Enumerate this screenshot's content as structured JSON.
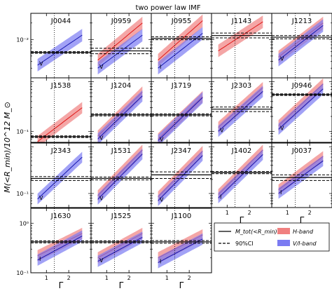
{
  "figure": {
    "title": "two power law IMF",
    "ylabel": "M(<R_min)/10^12 M_⊙",
    "xlabel": "Γ"
  },
  "legend": {
    "solid_label": "M_tot(<R_min)",
    "dashed_label": "90%CI",
    "red_label": "H-band",
    "blue_label": "V/I-band"
  },
  "colors": {
    "red_band": "#f08080",
    "blue_band": "#7b7bf2",
    "red_line": "#e01818",
    "blue_line": "#1818b0",
    "black": "#000000"
  },
  "chart_data": {
    "type": "line",
    "title": "two power law IMF",
    "xlabel": "Γ",
    "ylabel": "M(<R_min)/10^12 M_⊙",
    "xlim": [
      0.3,
      3.0
    ],
    "x_ticks": [
      1,
      2
    ],
    "x_tick_labels": [
      "1",
      "2"
    ],
    "yscale": "log",
    "gamma_reference": 1.35,
    "row_ylim": [
      [
        0.02,
        0.3
      ],
      [
        0.006,
        0.12
      ],
      [
        0.005,
        0.12
      ],
      [
        0.1,
        2.0
      ]
    ],
    "row_ytick_labels": [
      [
        "10⁻²",
        "10⁻¹"
      ],
      [
        "10⁻¹"
      ],
      [
        "10⁻¹"
      ],
      [
        "10⁻¹",
        "10⁰"
      ]
    ],
    "panels": [
      {
        "name": "J0044",
        "row": 0,
        "col": 0,
        "band": "V",
        "mtot": 0.058,
        "ci_lo": 0.056,
        "ci_hi": 0.06,
        "red": null,
        "blue": [
          0.034,
          0.12
        ]
      },
      {
        "name": "J0959",
        "row": 0,
        "col": 1,
        "band": "V",
        "mtot": 0.062,
        "ci_lo": 0.055,
        "ci_hi": 0.069,
        "red": [
          0.042,
          0.2
        ],
        "blue": [
          0.03,
          0.12
        ]
      },
      {
        "name": "J0955",
        "row": 0,
        "col": 2,
        "band": "I",
        "mtot": 0.105,
        "ci_lo": 0.099,
        "ci_hi": 0.112,
        "red": [
          0.042,
          0.22
        ],
        "blue": [
          0.03,
          0.13
        ]
      },
      {
        "name": "J1143",
        "row": 0,
        "col": 3,
        "band": "",
        "mtot": 0.118,
        "ci_lo": 0.107,
        "ci_hi": 0.131,
        "red": [
          0.062,
          0.21
        ],
        "blue": null
      },
      {
        "name": "J1213",
        "row": 0,
        "col": 4,
        "band": "V",
        "mtot": 0.11,
        "ci_lo": 0.103,
        "ci_hi": 0.118,
        "red": [
          0.048,
          0.2
        ],
        "blue": [
          0.042,
          0.18
        ]
      },
      {
        "name": "J1538",
        "row": 1,
        "col": 0,
        "band": "",
        "mtot": 0.0078,
        "ci_lo": 0.0075,
        "ci_hi": 0.0081,
        "red": [
          0.0062,
          0.03
        ],
        "blue": null
      },
      {
        "name": "J1204",
        "row": 1,
        "col": 1,
        "band": "V",
        "mtot": 0.0215,
        "ci_lo": 0.0205,
        "ci_hi": 0.0225,
        "red": [
          0.008,
          0.062
        ],
        "blue": [
          0.007,
          0.052
        ]
      },
      {
        "name": "J1719",
        "row": 1,
        "col": 2,
        "band": "V",
        "mtot": 0.0215,
        "ci_lo": 0.0205,
        "ci_hi": 0.0225,
        "red": [
          0.007,
          0.05
        ],
        "blue": [
          0.0065,
          0.048
        ]
      },
      {
        "name": "J2303",
        "row": 1,
        "col": 3,
        "band": "V",
        "mtot": 0.028,
        "ci_lo": 0.025,
        "ci_hi": 0.031,
        "red": [
          0.012,
          0.076
        ],
        "blue": [
          0.01,
          0.064
        ]
      },
      {
        "name": "J0946",
        "row": 1,
        "col": 4,
        "band": "V",
        "mtot": 0.055,
        "ci_lo": 0.053,
        "ci_hi": 0.057,
        "red": [
          0.013,
          0.09
        ],
        "blue": [
          0.011,
          0.072
        ]
      },
      {
        "name": "J2343",
        "row": 2,
        "col": 0,
        "band": "V",
        "mtot": 0.021,
        "ci_lo": 0.019,
        "ci_hi": 0.023,
        "red": null,
        "blue": [
          0.0076,
          0.06
        ]
      },
      {
        "name": "J1531",
        "row": 2,
        "col": 1,
        "band": "V",
        "mtot": 0.021,
        "ci_lo": 0.0195,
        "ci_hi": 0.0225,
        "red": [
          0.009,
          0.085
        ],
        "blue": [
          0.0075,
          0.07
        ]
      },
      {
        "name": "J2347",
        "row": 2,
        "col": 2,
        "band": "V",
        "mtot": 0.025,
        "ci_lo": 0.021,
        "ci_hi": 0.029,
        "red": [
          0.0085,
          0.08
        ],
        "blue": [
          0.007,
          0.065
        ]
      },
      {
        "name": "J1402",
        "row": 2,
        "col": 3,
        "band": "I",
        "mtot": 0.028,
        "ci_lo": 0.0265,
        "ci_hi": 0.0295,
        "red": [
          0.0095,
          0.085
        ],
        "blue": [
          0.008,
          0.068
        ]
      },
      {
        "name": "J0037",
        "row": 2,
        "col": 4,
        "band": "I",
        "mtot": 0.022,
        "ci_lo": 0.019,
        "ci_hi": 0.025,
        "red": [
          0.012,
          0.062
        ],
        "blue": [
          0.01,
          0.05
        ]
      },
      {
        "name": "J1630",
        "row": 3,
        "col": 0,
        "band": "I",
        "mtot": 0.42,
        "ci_lo": 0.4,
        "ci_hi": 0.44,
        "red": [
          0.22,
          0.62
        ],
        "blue": [
          0.18,
          0.55
        ]
      },
      {
        "name": "J1525",
        "row": 3,
        "col": 1,
        "band": "V",
        "mtot": 0.42,
        "ci_lo": 0.4,
        "ci_hi": 0.44,
        "red": [
          0.2,
          0.62
        ],
        "blue": [
          0.17,
          0.52
        ]
      },
      {
        "name": "J1100",
        "row": 3,
        "col": 2,
        "band": "I",
        "mtot": 0.42,
        "ci_lo": 0.395,
        "ci_hi": 0.445,
        "red": [
          0.2,
          0.58
        ],
        "blue": [
          0.16,
          0.48
        ]
      }
    ]
  }
}
